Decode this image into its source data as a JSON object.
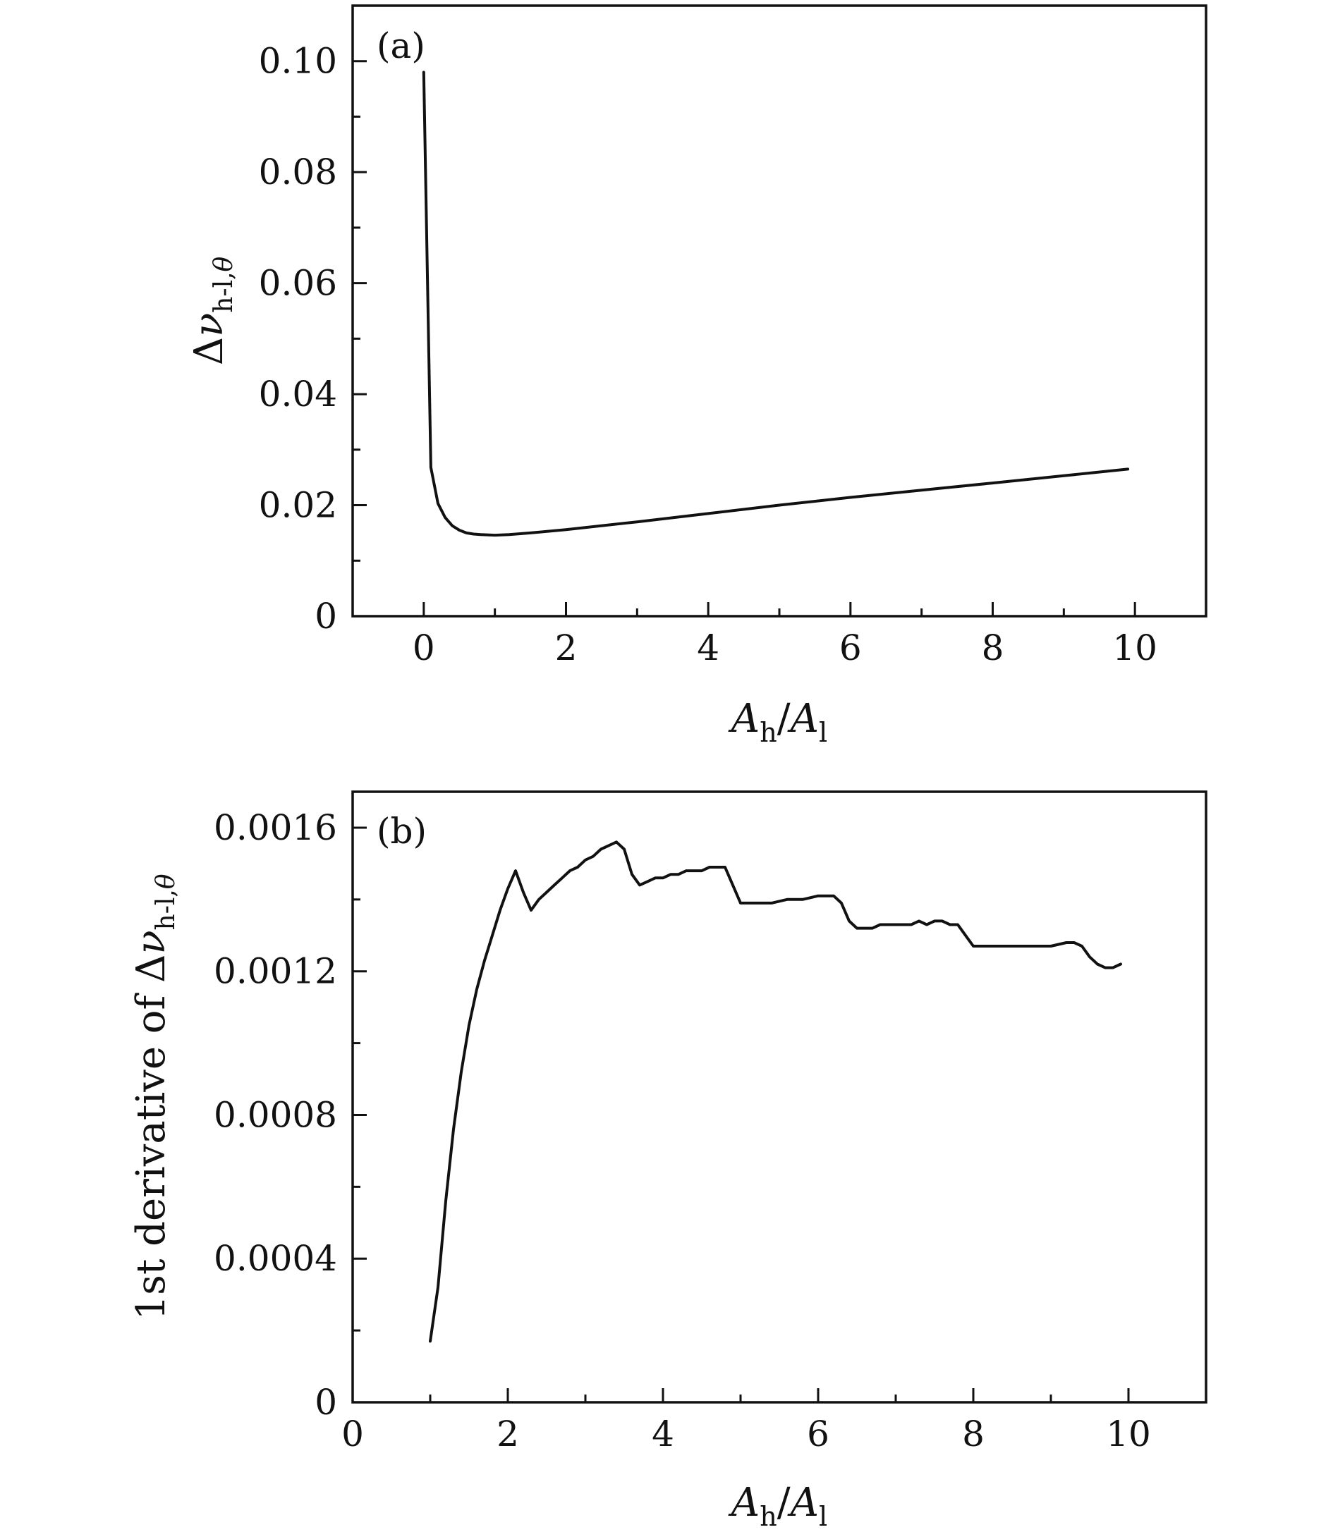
{
  "chart_data": [
    {
      "type": "line",
      "panel_label": "(a)",
      "xlabel": "A_h/A_l",
      "ylabel": "Δν_{h-l,θ}",
      "xlim": [
        -1,
        11
      ],
      "ylim": [
        0,
        0.11
      ],
      "x_ticks": [
        0,
        2,
        4,
        6,
        8,
        10
      ],
      "x_tick_labels": [
        "0",
        "2",
        "4",
        "6",
        "8",
        "10"
      ],
      "y_ticks": [
        0,
        0.02,
        0.04,
        0.06,
        0.08,
        0.1
      ],
      "y_tick_labels": [
        "0",
        "0.02",
        "0.04",
        "0.06",
        "0.08",
        "0.10"
      ],
      "grid": false,
      "series": [
        {
          "x": [
            0.0,
            0.1,
            0.2,
            0.3,
            0.4,
            0.5,
            0.6,
            0.7,
            0.8,
            1.0,
            1.2,
            1.5,
            2.0,
            3.0,
            4.0,
            5.0,
            6.0,
            7.0,
            8.0,
            9.0,
            9.9
          ],
          "y": [
            0.098,
            0.0268,
            0.0203,
            0.0178,
            0.0163,
            0.0155,
            0.015,
            0.0148,
            0.0147,
            0.0146,
            0.0147,
            0.015,
            0.0156,
            0.017,
            0.0185,
            0.02,
            0.0214,
            0.0227,
            0.024,
            0.0253,
            0.0265
          ]
        }
      ]
    },
    {
      "type": "line",
      "panel_label": "(b)",
      "xlabel": "A_h/A_l",
      "ylabel": "1st derivative of Δν_{h-l,θ}",
      "xlim": [
        0,
        11
      ],
      "ylim": [
        0,
        0.0017
      ],
      "x_ticks": [
        0,
        2,
        4,
        6,
        8,
        10
      ],
      "x_tick_labels": [
        "0",
        "2",
        "4",
        "6",
        "8",
        "10"
      ],
      "y_ticks": [
        0,
        0.0004,
        0.0008,
        0.0012,
        0.0016
      ],
      "y_tick_labels": [
        "0",
        "0.0004",
        "0.0008",
        "0.0012",
        "0.0016"
      ],
      "grid": false,
      "series": [
        {
          "x": [
            1.0,
            1.1,
            1.2,
            1.3,
            1.4,
            1.5,
            1.6,
            1.7,
            1.8,
            1.9,
            2.0,
            2.1,
            2.2,
            2.3,
            2.4,
            2.5,
            2.6,
            2.7,
            2.8,
            2.9,
            3.0,
            3.1,
            3.2,
            3.3,
            3.4,
            3.5,
            3.6,
            3.7,
            3.8,
            3.9,
            4.0,
            4.1,
            4.2,
            4.3,
            4.4,
            4.5,
            4.6,
            4.7,
            4.8,
            4.9,
            5.0,
            5.2,
            5.4,
            5.6,
            5.8,
            6.0,
            6.2,
            6.3,
            6.4,
            6.5,
            6.6,
            6.7,
            6.8,
            6.9,
            7.0,
            7.2,
            7.3,
            7.4,
            7.5,
            7.6,
            7.7,
            7.8,
            7.9,
            8.0,
            8.2,
            8.4,
            8.6,
            8.8,
            9.0,
            9.2,
            9.3,
            9.4,
            9.5,
            9.6,
            9.7,
            9.8,
            9.9
          ],
          "y": [
            0.00017,
            0.00032,
            0.00056,
            0.00076,
            0.00092,
            0.00105,
            0.00115,
            0.00123,
            0.0013,
            0.00137,
            0.00143,
            0.00148,
            0.00142,
            0.00137,
            0.0014,
            0.00142,
            0.00144,
            0.00146,
            0.00148,
            0.00149,
            0.00151,
            0.00152,
            0.00154,
            0.00155,
            0.00156,
            0.00154,
            0.00147,
            0.00144,
            0.00145,
            0.00146,
            0.00146,
            0.00147,
            0.00147,
            0.00148,
            0.00148,
            0.00148,
            0.00149,
            0.00149,
            0.00149,
            0.00144,
            0.00139,
            0.00139,
            0.00139,
            0.0014,
            0.0014,
            0.00141,
            0.00141,
            0.00139,
            0.00134,
            0.00132,
            0.00132,
            0.00132,
            0.00133,
            0.00133,
            0.00133,
            0.00133,
            0.00134,
            0.00133,
            0.00134,
            0.00134,
            0.00133,
            0.00133,
            0.0013,
            0.00127,
            0.00127,
            0.00127,
            0.00127,
            0.00127,
            0.00127,
            0.00128,
            0.00128,
            0.00127,
            0.00124,
            0.00122,
            0.00121,
            0.00121,
            0.00122
          ]
        }
      ]
    }
  ]
}
